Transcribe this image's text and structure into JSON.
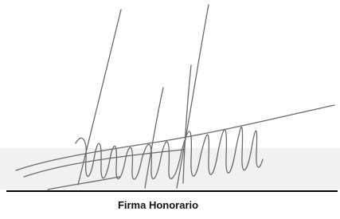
{
  "signature_block": {
    "label": "Firma Honorario"
  }
}
